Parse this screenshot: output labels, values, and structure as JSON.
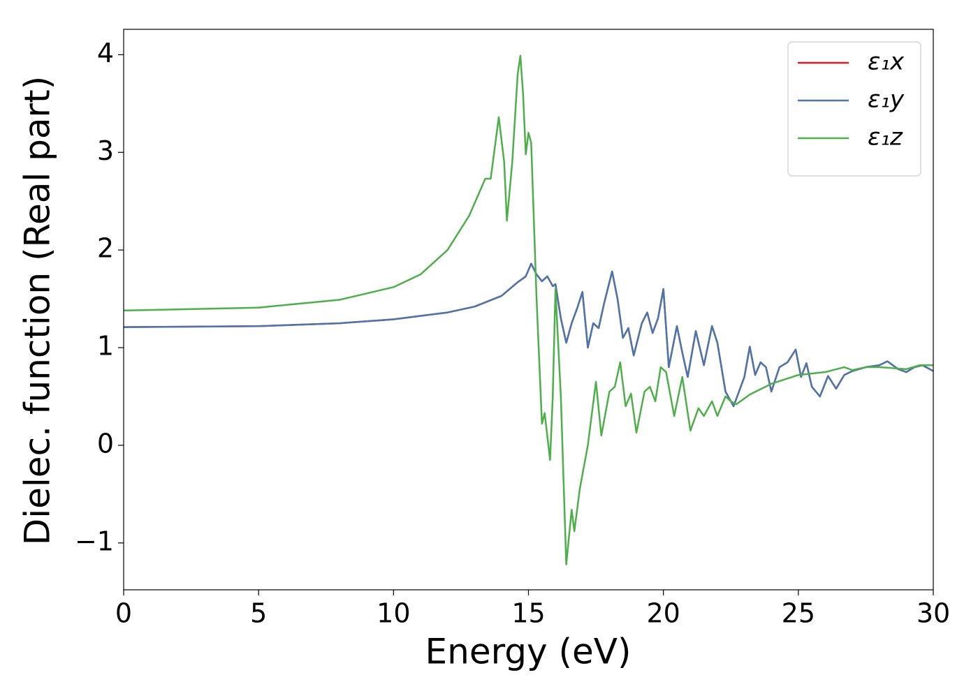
{
  "chart_data": {
    "type": "line",
    "xlabel": "Energy (eV)",
    "ylabel": "Dielec. function (Real part)",
    "xlim": [
      0,
      30
    ],
    "ylim": [
      -1.48,
      4.26
    ],
    "xticks": [
      0,
      5,
      10,
      15,
      20,
      25,
      30
    ],
    "yticks": [
      {
        "value": -1,
        "label": "−1"
      },
      0,
      1,
      2,
      3,
      4
    ],
    "legend": "upper right",
    "series": [
      {
        "name": "ε₁x",
        "color": "#e41a1c",
        "x": [
          0,
          5,
          8,
          10,
          12,
          13,
          14,
          14.6,
          14.9,
          15.1,
          15.3,
          15.5,
          15.7,
          15.9,
          16.0,
          16.2,
          16.4,
          16.6,
          16.8,
          17.0,
          17.2,
          17.4,
          17.6,
          17.8,
          18.1,
          18.3,
          18.5,
          18.7,
          18.9,
          19.2,
          19.4,
          19.6,
          19.8,
          20.0,
          20.2,
          20.5,
          20.7,
          20.9,
          21.2,
          21.5,
          21.8,
          22.0,
          22.3,
          22.6,
          23.0,
          23.2,
          23.4,
          23.6,
          23.8,
          24.0,
          24.3,
          24.6,
          24.9,
          25.1,
          25.3,
          25.5,
          25.8,
          26.1,
          26.4,
          26.7,
          27.0,
          27.5,
          28.0,
          28.3,
          28.7,
          29.0,
          29.3,
          29.6,
          30
        ],
        "values": [
          1.21,
          1.22,
          1.25,
          1.29,
          1.36,
          1.42,
          1.53,
          1.67,
          1.73,
          1.86,
          1.75,
          1.68,
          1.73,
          1.63,
          1.65,
          1.3,
          1.05,
          1.25,
          1.4,
          1.57,
          1.0,
          1.25,
          1.2,
          1.45,
          1.78,
          1.5,
          1.1,
          1.2,
          0.92,
          1.25,
          1.36,
          1.15,
          1.3,
          1.6,
          0.8,
          1.22,
          0.95,
          0.7,
          1.17,
          0.82,
          1.22,
          1.05,
          0.55,
          0.4,
          0.7,
          1.01,
          0.72,
          0.85,
          0.8,
          0.55,
          0.8,
          0.85,
          0.98,
          0.7,
          0.84,
          0.6,
          0.5,
          0.71,
          0.58,
          0.72,
          0.76,
          0.8,
          0.82,
          0.86,
          0.78,
          0.75,
          0.8,
          0.82,
          0.76
        ]
      },
      {
        "name": "ε₁y",
        "color": "#4a76b0",
        "x": [
          0,
          5,
          8,
          10,
          12,
          13,
          14,
          14.6,
          14.9,
          15.1,
          15.3,
          15.5,
          15.7,
          15.9,
          16.0,
          16.2,
          16.4,
          16.6,
          16.8,
          17.0,
          17.2,
          17.4,
          17.6,
          17.8,
          18.1,
          18.3,
          18.5,
          18.7,
          18.9,
          19.2,
          19.4,
          19.6,
          19.8,
          20.0,
          20.2,
          20.5,
          20.7,
          20.9,
          21.2,
          21.5,
          21.8,
          22.0,
          22.3,
          22.6,
          23.0,
          23.2,
          23.4,
          23.6,
          23.8,
          24.0,
          24.3,
          24.6,
          24.9,
          25.1,
          25.3,
          25.5,
          25.8,
          26.1,
          26.4,
          26.7,
          27.0,
          27.5,
          28.0,
          28.3,
          28.7,
          29.0,
          29.3,
          29.6,
          30
        ],
        "values": [
          1.21,
          1.22,
          1.25,
          1.29,
          1.36,
          1.42,
          1.53,
          1.67,
          1.73,
          1.86,
          1.75,
          1.68,
          1.73,
          1.63,
          1.65,
          1.3,
          1.05,
          1.25,
          1.4,
          1.57,
          1.0,
          1.25,
          1.2,
          1.45,
          1.78,
          1.5,
          1.1,
          1.2,
          0.92,
          1.25,
          1.36,
          1.15,
          1.3,
          1.6,
          0.8,
          1.22,
          0.95,
          0.7,
          1.17,
          0.82,
          1.22,
          1.05,
          0.55,
          0.4,
          0.7,
          1.01,
          0.72,
          0.85,
          0.8,
          0.55,
          0.8,
          0.85,
          0.98,
          0.7,
          0.84,
          0.6,
          0.5,
          0.71,
          0.58,
          0.72,
          0.76,
          0.8,
          0.82,
          0.86,
          0.78,
          0.75,
          0.8,
          0.82,
          0.76
        ]
      },
      {
        "name": "ε₁z",
        "color": "#4daf4a",
        "x": [
          0,
          5,
          8,
          10,
          11,
          12,
          12.8,
          13.4,
          13.6,
          13.9,
          14.1,
          14.2,
          14.4,
          14.6,
          14.7,
          14.8,
          14.9,
          15.0,
          15.1,
          15.3,
          15.5,
          15.6,
          15.8,
          15.9,
          16.0,
          16.2,
          16.4,
          16.6,
          16.7,
          16.9,
          17.2,
          17.5,
          17.7,
          18.0,
          18.2,
          18.4,
          18.6,
          18.8,
          19.0,
          19.3,
          19.5,
          19.7,
          19.9,
          20.1,
          20.4,
          20.7,
          21.0,
          21.3,
          21.5,
          21.8,
          22.0,
          22.3,
          22.5,
          22.7,
          23.2,
          24.0,
          25.0,
          26.0,
          26.7,
          27.0,
          27.5,
          28.0,
          28.5,
          29.0,
          29.5,
          30
        ],
        "values": [
          1.38,
          1.41,
          1.49,
          1.62,
          1.75,
          2.0,
          2.35,
          2.73,
          2.73,
          3.36,
          2.9,
          2.3,
          2.9,
          3.8,
          3.99,
          3.6,
          2.98,
          3.2,
          3.1,
          1.5,
          0.22,
          0.33,
          -0.15,
          0.5,
          1.6,
          0.5,
          -1.22,
          -0.66,
          -0.88,
          -0.45,
          0.0,
          0.65,
          0.1,
          0.55,
          0.6,
          0.85,
          0.4,
          0.53,
          0.13,
          0.55,
          0.6,
          0.45,
          0.8,
          0.75,
          0.3,
          0.7,
          0.15,
          0.38,
          0.3,
          0.45,
          0.3,
          0.5,
          0.45,
          0.42,
          0.52,
          0.63,
          0.72,
          0.75,
          0.8,
          0.77,
          0.8,
          0.8,
          0.79,
          0.78,
          0.82,
          0.82
        ]
      }
    ]
  }
}
